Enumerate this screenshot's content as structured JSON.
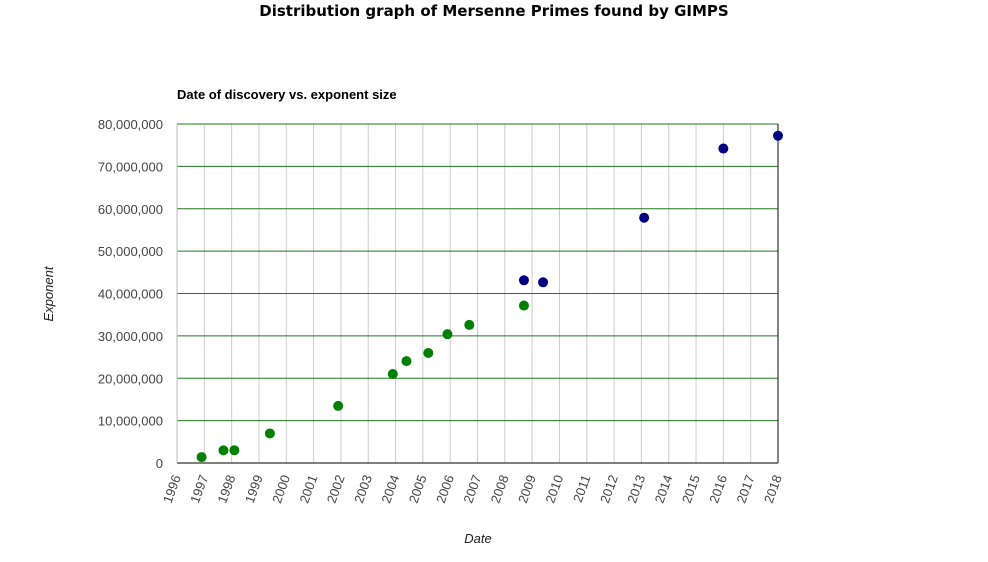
{
  "page": {
    "title": "Distribution graph of Mersenne Primes found by GIMPS"
  },
  "chart_data": {
    "type": "scatter",
    "title": "Date of discovery vs. exponent size",
    "xlabel": "Date",
    "ylabel": "Exponent",
    "xlim": [
      1996,
      2018
    ],
    "ylim": [
      0,
      80000000
    ],
    "x_ticks": [
      "1996",
      "1997",
      "1998",
      "1999",
      "2000",
      "2001",
      "2002",
      "2003",
      "2004",
      "2005",
      "2006",
      "2007",
      "2008",
      "2009",
      "2010",
      "2011",
      "2012",
      "2013",
      "2014",
      "2015",
      "2016",
      "2017",
      "2018"
    ],
    "y_ticks": [
      {
        "value": 0,
        "label": "0"
      },
      {
        "value": 10000000,
        "label": "10,000,000"
      },
      {
        "value": 20000000,
        "label": "20,000,000"
      },
      {
        "value": 30000000,
        "label": "30,000,000"
      },
      {
        "value": 40000000,
        "label": "40,000,000"
      },
      {
        "value": 50000000,
        "label": "50,000,000"
      },
      {
        "value": 60000000,
        "label": "60,000,000"
      },
      {
        "value": 70000000,
        "label": "70,000,000"
      },
      {
        "value": 80000000,
        "label": "80,000,000"
      }
    ],
    "grid": {
      "horizontal": true,
      "vertical": true
    },
    "grid_color": "#1e7a1e",
    "vertical_grid_color": "#cccccc",
    "series": [
      {
        "color": "#008000",
        "points": [
          {
            "x": 1996.9,
            "y": 1398269
          },
          {
            "x": 1997.7,
            "y": 2976221
          },
          {
            "x": 1998.1,
            "y": 3021377
          },
          {
            "x": 1999.4,
            "y": 6972593
          },
          {
            "x": 2001.9,
            "y": 13466917
          },
          {
            "x": 2003.9,
            "y": 20996011
          },
          {
            "x": 2004.4,
            "y": 24036583
          },
          {
            "x": 2005.2,
            "y": 25964951
          },
          {
            "x": 2005.9,
            "y": 30402457
          },
          {
            "x": 2006.7,
            "y": 32582657
          },
          {
            "x": 2008.7,
            "y": 37156667
          }
        ]
      },
      {
        "color": "#000080",
        "points": [
          {
            "x": 2008.7,
            "y": 43112609
          },
          {
            "x": 2009.4,
            "y": 42643801
          },
          {
            "x": 2013.1,
            "y": 57885161
          },
          {
            "x": 2016.0,
            "y": 74207281
          },
          {
            "x": 2018.0,
            "y": 77232917
          }
        ]
      }
    ]
  }
}
